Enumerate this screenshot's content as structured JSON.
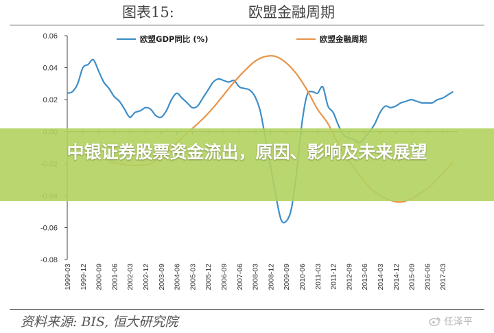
{
  "figure": {
    "number": "图表15:",
    "title": "欧盟金融周期"
  },
  "banner": {
    "headline": "中银证券股票资金流出，原因、影响及未来展望"
  },
  "source": "资料来源: BIS, 恒大研究院",
  "watermark": {
    "text": "任泽平",
    "icon": "weibo-icon"
  },
  "colors": {
    "gdp": "#3d8ec7",
    "cycle": "#e8944a",
    "banner": "#b2d25f",
    "axis": "#444444"
  },
  "chart_data": {
    "type": "line",
    "ylim": [
      -0.08,
      0.06
    ],
    "yticks": [
      0.06,
      0.04,
      0.02,
      0.0,
      -0.02,
      -0.04,
      -0.06,
      -0.08
    ],
    "ytick_labels": [
      "0.06",
      "0.04",
      "0.02",
      "0.00",
      "-0.02",
      "-0.04",
      "-0.06",
      "-0.08"
    ],
    "xlim": [
      1999.0,
      2017.75
    ],
    "xtick_labels": [
      "1999-03",
      "1999-12",
      "2000-09",
      "2001-06",
      "2002-03",
      "2002-12",
      "2003-09",
      "2004-06",
      "2005-03",
      "2005-12",
      "2006-09",
      "2007-06",
      "2008-03",
      "2008-12",
      "2009-09",
      "2010-06",
      "2011-03",
      "2011-12",
      "2012-09",
      "2013-06",
      "2014-03",
      "2014-12",
      "2015-09",
      "2016-06",
      "2017-03"
    ],
    "xticks": [
      1999.0,
      1999.75,
      2000.5,
      2001.25,
      2002.0,
      2002.75,
      2003.5,
      2004.25,
      2005.0,
      2005.75,
      2006.5,
      2007.25,
      2008.0,
      2008.75,
      2009.5,
      2010.25,
      2011.0,
      2011.75,
      2012.5,
      2013.25,
      2014.0,
      2014.75,
      2015.5,
      2016.25,
      2017.0
    ],
    "grid": false,
    "legend": "top",
    "series": [
      {
        "name": "欧盟GDP同比 (%)",
        "color": "#3d8ec7",
        "x": [
          1999.0,
          1999.25,
          1999.5,
          1999.75,
          2000.0,
          2000.25,
          2000.5,
          2000.75,
          2001.0,
          2001.25,
          2001.5,
          2001.75,
          2002.0,
          2002.25,
          2002.5,
          2002.75,
          2003.0,
          2003.25,
          2003.5,
          2003.75,
          2004.0,
          2004.25,
          2004.5,
          2004.75,
          2005.0,
          2005.25,
          2005.5,
          2005.75,
          2006.0,
          2006.25,
          2006.5,
          2006.75,
          2007.0,
          2007.25,
          2007.5,
          2007.75,
          2008.0,
          2008.25,
          2008.5,
          2008.75,
          2009.0,
          2009.25,
          2009.5,
          2009.75,
          2010.0,
          2010.25,
          2010.5,
          2010.75,
          2011.0,
          2011.25,
          2011.5,
          2011.75,
          2012.0,
          2012.25,
          2012.5,
          2012.75,
          2013.0,
          2013.25,
          2013.5,
          2013.75,
          2014.0,
          2014.25,
          2014.5,
          2014.75,
          2015.0,
          2015.25,
          2015.5,
          2015.75,
          2016.0,
          2016.25,
          2016.5,
          2016.75,
          2017.0,
          2017.25,
          2017.5
        ],
        "y": [
          0.024,
          0.025,
          0.03,
          0.04,
          0.042,
          0.045,
          0.038,
          0.031,
          0.027,
          0.022,
          0.019,
          0.014,
          0.009,
          0.012,
          0.013,
          0.015,
          0.014,
          0.01,
          0.009,
          0.013,
          0.02,
          0.024,
          0.021,
          0.018,
          0.015,
          0.016,
          0.021,
          0.026,
          0.031,
          0.033,
          0.032,
          0.031,
          0.032,
          0.028,
          0.027,
          0.026,
          0.022,
          0.013,
          -0.004,
          -0.022,
          -0.04,
          -0.055,
          -0.056,
          -0.048,
          -0.025,
          0.005,
          0.023,
          0.025,
          0.024,
          0.028,
          0.016,
          0.012,
          0.004,
          -0.002,
          -0.004,
          -0.005,
          -0.007,
          -0.004,
          0.0,
          0.005,
          0.012,
          0.016,
          0.015,
          0.016,
          0.018,
          0.019,
          0.02,
          0.019,
          0.018,
          0.018,
          0.018,
          0.02,
          0.021,
          0.023,
          0.025
        ]
      },
      {
        "name": "欧盟金融周期",
        "color": "#e8944a",
        "x": [
          2001.0,
          2001.5,
          2002.0,
          2002.5,
          2003.0,
          2003.5,
          2004.0,
          2004.5,
          2005.0,
          2005.5,
          2006.0,
          2006.5,
          2007.0,
          2007.5,
          2008.0,
          2008.5,
          2009.0,
          2009.5,
          2010.0,
          2010.5,
          2011.0,
          2011.5,
          2012.0,
          2012.5,
          2013.0,
          2013.5,
          2014.0,
          2014.5,
          2015.0,
          2015.5,
          2016.0,
          2016.5,
          2017.0,
          2017.5
        ],
        "y": [
          -0.019,
          -0.02,
          -0.021,
          -0.021,
          -0.02,
          -0.016,
          -0.01,
          -0.004,
          0.002,
          0.008,
          0.015,
          0.023,
          0.031,
          0.038,
          0.044,
          0.047,
          0.047,
          0.043,
          0.036,
          0.026,
          0.014,
          0.005,
          -0.008,
          -0.018,
          -0.027,
          -0.035,
          -0.04,
          -0.043,
          -0.044,
          -0.042,
          -0.038,
          -0.033,
          -0.026,
          -0.019
        ]
      }
    ]
  }
}
